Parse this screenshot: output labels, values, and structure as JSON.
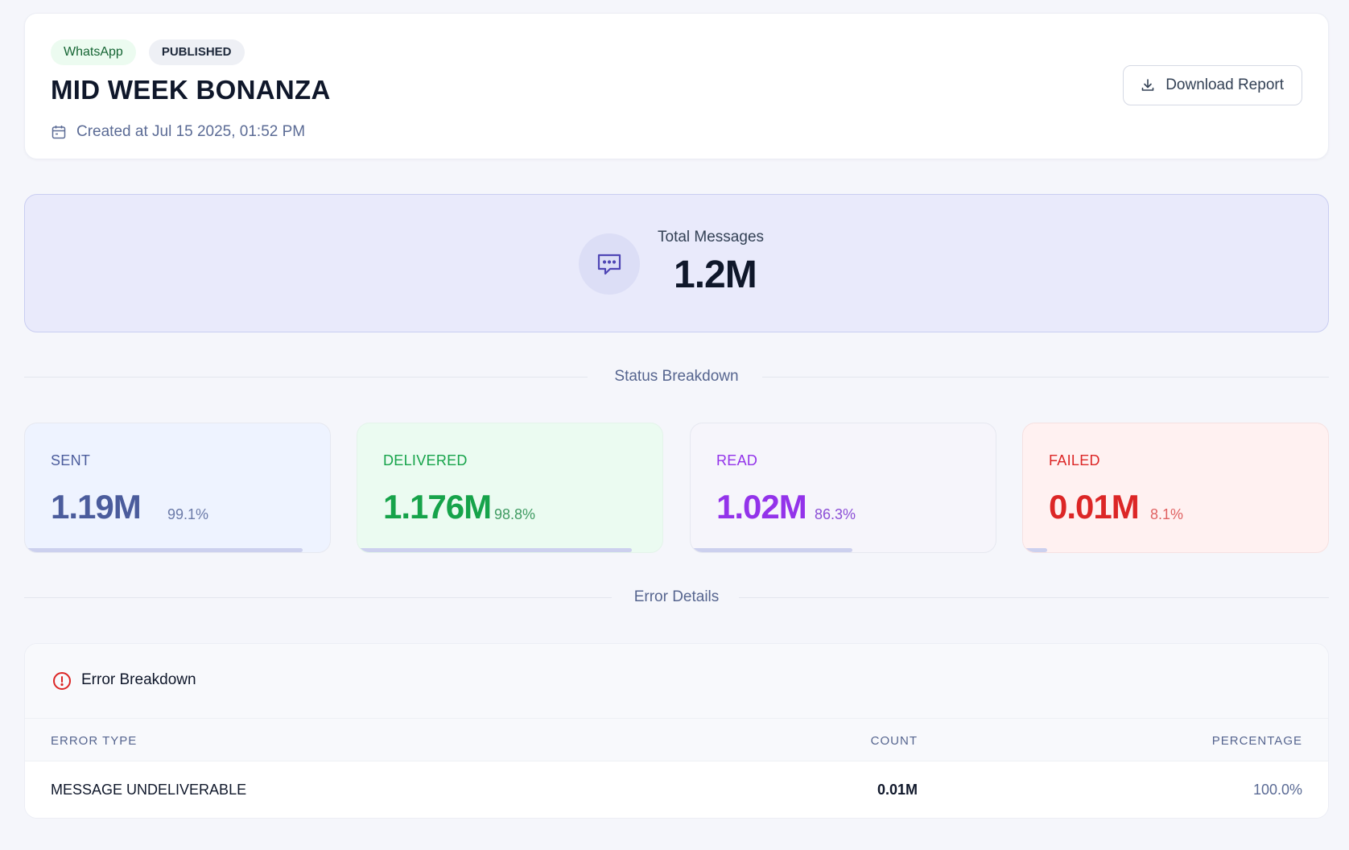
{
  "header": {
    "channel_badge": "WhatsApp",
    "status_badge": "PUBLISHED",
    "title": "MID WEEK BONANZA",
    "created_text": "Created at Jul 15 2025, 01:52 PM",
    "download_label": "Download Report"
  },
  "total": {
    "label": "Total Messages",
    "value": "1.2M"
  },
  "sections": {
    "status_breakdown": "Status Breakdown",
    "error_details": "Error Details"
  },
  "status_cards": [
    {
      "label": "SENT",
      "value": "1.19M",
      "percent": "99.1%",
      "fill": 0.91,
      "color": "#4b5c9c"
    },
    {
      "label": "DELIVERED",
      "value": "1.176M",
      "percent": "98.8%",
      "fill": 0.9,
      "color": "#16a34a"
    },
    {
      "label": "READ",
      "value": "1.02M",
      "percent": "86.3%",
      "fill": 0.53,
      "color": "#9333ea"
    },
    {
      "label": "FAILED",
      "value": "0.01M",
      "percent": "8.1%",
      "fill": 0.08,
      "color": "#dc2626"
    }
  ],
  "errors": {
    "title": "Error Breakdown",
    "columns": {
      "type": "ERROR TYPE",
      "count": "COUNT",
      "percentage": "PERCENTAGE"
    },
    "rows": [
      {
        "type": "MESSAGE UNDELIVERABLE",
        "count": "0.01M",
        "percentage": "100.0%"
      }
    ]
  }
}
